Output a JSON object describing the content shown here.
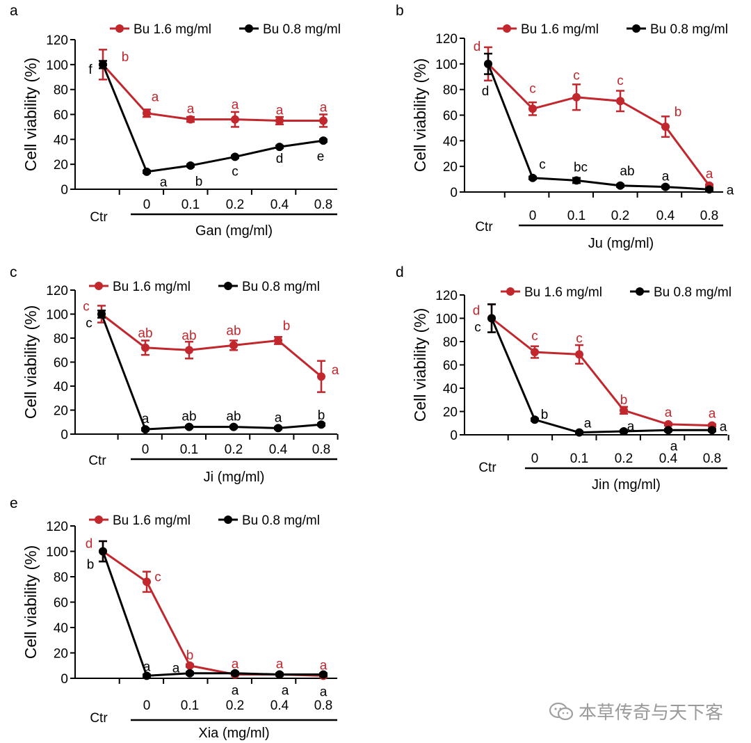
{
  "colors": {
    "high": "#c1272d",
    "low": "#000000",
    "axis": "#000000"
  },
  "series_names": [
    "Bu 1.6 mg/ml",
    "Bu 0.8 mg/ml"
  ],
  "chart_data": [
    {
      "type": "line",
      "panel": "a",
      "ylabel": "Cell viability (%)",
      "xlabel": "Gan (mg/ml)",
      "categories": [
        "Ctr",
        "0",
        "0.1",
        "0.2",
        "0.4",
        "0.8"
      ],
      "yticks": [
        "0",
        "20",
        "40",
        "60",
        "80",
        "100",
        "120"
      ],
      "ylim": [
        0,
        120
      ],
      "legend": "top",
      "series": [
        {
          "name": "Bu 1.6 mg/ml",
          "color": "#c1272d",
          "values": [
            100,
            61,
            56,
            56,
            55,
            55
          ],
          "errors": [
            12,
            3,
            2,
            6,
            3,
            5
          ],
          "letters": [
            "b",
            "a",
            "a",
            "a",
            "a",
            "a"
          ]
        },
        {
          "name": "Bu 0.8 mg/ml",
          "color": "#000000",
          "values": [
            100,
            14,
            19,
            26,
            34,
            39
          ],
          "errors": [
            3,
            1,
            1,
            1,
            1,
            1
          ],
          "letters": [
            "f",
            "a",
            "b",
            "c",
            "d",
            "e"
          ]
        }
      ]
    },
    {
      "type": "line",
      "panel": "b",
      "ylabel": "Cell viability (%)",
      "xlabel": "Ju (mg/ml)",
      "categories": [
        "Ctr",
        "0",
        "0.1",
        "0.2",
        "0.4",
        "0.8"
      ],
      "yticks": [
        "0",
        "20",
        "40",
        "60",
        "80",
        "100",
        "120"
      ],
      "ylim": [
        0,
        120
      ],
      "legend": "top",
      "series": [
        {
          "name": "Bu 1.6 mg/ml",
          "color": "#c1272d",
          "values": [
            100,
            65,
            74,
            71,
            51,
            5
          ],
          "errors": [
            13,
            5,
            10,
            8,
            8,
            1
          ],
          "letters": [
            "d",
            "c",
            "c",
            "c",
            "b",
            "a"
          ]
        },
        {
          "name": "Bu 0.8 mg/ml",
          "color": "#000000",
          "values": [
            100,
            11,
            9,
            5,
            4,
            2
          ],
          "errors": [
            8,
            1,
            2,
            1,
            1,
            1
          ],
          "letters": [
            "d",
            "c",
            "bc",
            "ab",
            "a",
            "a"
          ]
        }
      ]
    },
    {
      "type": "line",
      "panel": "c",
      "ylabel": "Cell viability (%)",
      "xlabel": "Ji (mg/ml)",
      "categories": [
        "Ctr",
        "0",
        "0.1",
        "0.2",
        "0.4",
        "0.8"
      ],
      "yticks": [
        "0",
        "20",
        "40",
        "60",
        "80",
        "100",
        "120"
      ],
      "ylim": [
        0,
        120
      ],
      "legend": "top",
      "series": [
        {
          "name": "Bu 1.6 mg/ml",
          "color": "#c1272d",
          "values": [
            100,
            72,
            70,
            74,
            78,
            48
          ],
          "errors": [
            7,
            6,
            7,
            4,
            3,
            13
          ],
          "letters": [
            "c",
            "ab",
            "ab",
            "ab",
            "b",
            "a"
          ]
        },
        {
          "name": "Bu 0.8 mg/ml",
          "color": "#000000",
          "values": [
            100,
            4,
            6,
            6,
            5,
            8
          ],
          "errors": [
            3,
            1,
            1,
            1,
            1,
            1
          ],
          "letters": [
            "c",
            "a",
            "ab",
            "ab",
            "a",
            "b"
          ]
        }
      ]
    },
    {
      "type": "line",
      "panel": "d",
      "ylabel": "Cell viability (%)",
      "xlabel": "Jin (mg/ml)",
      "categories": [
        "Ctr",
        "0",
        "0.1",
        "0.2",
        "0.4",
        "0.8"
      ],
      "yticks": [
        "0",
        "20",
        "40",
        "60",
        "80",
        "100",
        "120"
      ],
      "ylim": [
        0,
        120
      ],
      "legend": "top",
      "series": [
        {
          "name": "Bu 1.6 mg/ml",
          "color": "#c1272d",
          "values": [
            100,
            71,
            69,
            21,
            9,
            8
          ],
          "errors": [
            12,
            5,
            8,
            3,
            1,
            1
          ],
          "letters": [
            "d",
            "c",
            "c",
            "b",
            "a",
            "a"
          ]
        },
        {
          "name": "Bu 0.8 mg/ml",
          "color": "#000000",
          "values": [
            100,
            13,
            2,
            3,
            4,
            4
          ],
          "errors": [
            12,
            1,
            1,
            1,
            1,
            1
          ],
          "letters": [
            "c",
            "b",
            "a",
            "a",
            "a",
            "a"
          ]
        }
      ]
    },
    {
      "type": "line",
      "panel": "e",
      "ylabel": "Cell viability (%)",
      "xlabel": "Xia (mg/ml)",
      "categories": [
        "Ctr",
        "0",
        "0.1",
        "0.2",
        "0.4",
        "0.8"
      ],
      "yticks": [
        "0",
        "20",
        "40",
        "60",
        "80",
        "100",
        "120"
      ],
      "ylim": [
        0,
        120
      ],
      "legend": "top",
      "series": [
        {
          "name": "Bu 1.6 mg/ml",
          "color": "#c1272d",
          "values": [
            100,
            76,
            10,
            3,
            3,
            2
          ],
          "errors": [
            8,
            8,
            1,
            1,
            1,
            1
          ],
          "letters": [
            "d",
            "c",
            "b",
            "a",
            "a",
            "a"
          ]
        },
        {
          "name": "Bu 0.8 mg/ml",
          "color": "#000000",
          "values": [
            100,
            2,
            4,
            4,
            3,
            3
          ],
          "errors": [
            8,
            1,
            1,
            1,
            1,
            1
          ],
          "letters": [
            "b",
            "a",
            "a",
            "a",
            "a",
            "a"
          ]
        }
      ]
    }
  ],
  "watermark": {
    "text": "本草传奇与天下客",
    "icon": "wechat-icon"
  }
}
